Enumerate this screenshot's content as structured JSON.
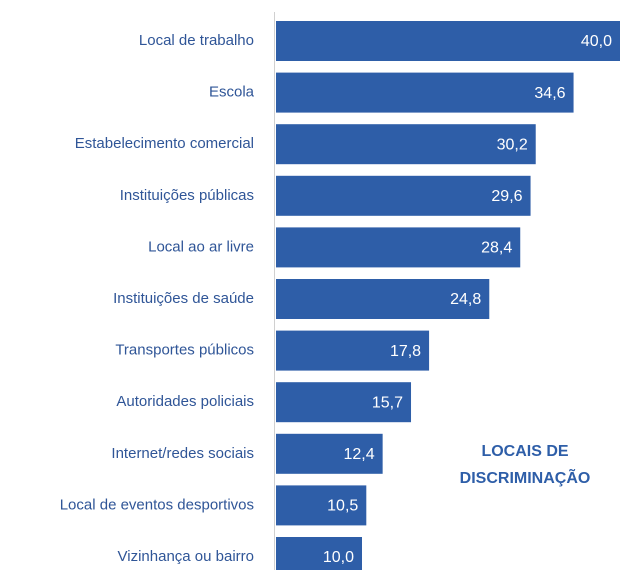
{
  "chart_data": {
    "type": "barh",
    "categories": [
      "Local de trabalho",
      "Escola",
      "Estabelecimento comercial",
      "Instituições públicas",
      "Local ao ar livre",
      "Instituições de saúde",
      "Transportes públicos",
      "Autoridades policiais",
      "Internet/redes sociais",
      "Local de eventos desportivos",
      "Vizinhança ou bairro"
    ],
    "values": [
      40.0,
      34.6,
      30.2,
      29.6,
      28.4,
      24.8,
      17.8,
      15.7,
      12.4,
      10.5,
      10.0
    ],
    "value_labels": [
      "40,0",
      "34,6",
      "30,2",
      "29,6",
      "28,4",
      "24,8",
      "17,8",
      "15,7",
      "12,4",
      "10,5",
      "10,0"
    ],
    "color": "#2e5ea8",
    "annotation": [
      "LOCAIS DE",
      "DISCRIMINAÇÃO"
    ]
  }
}
